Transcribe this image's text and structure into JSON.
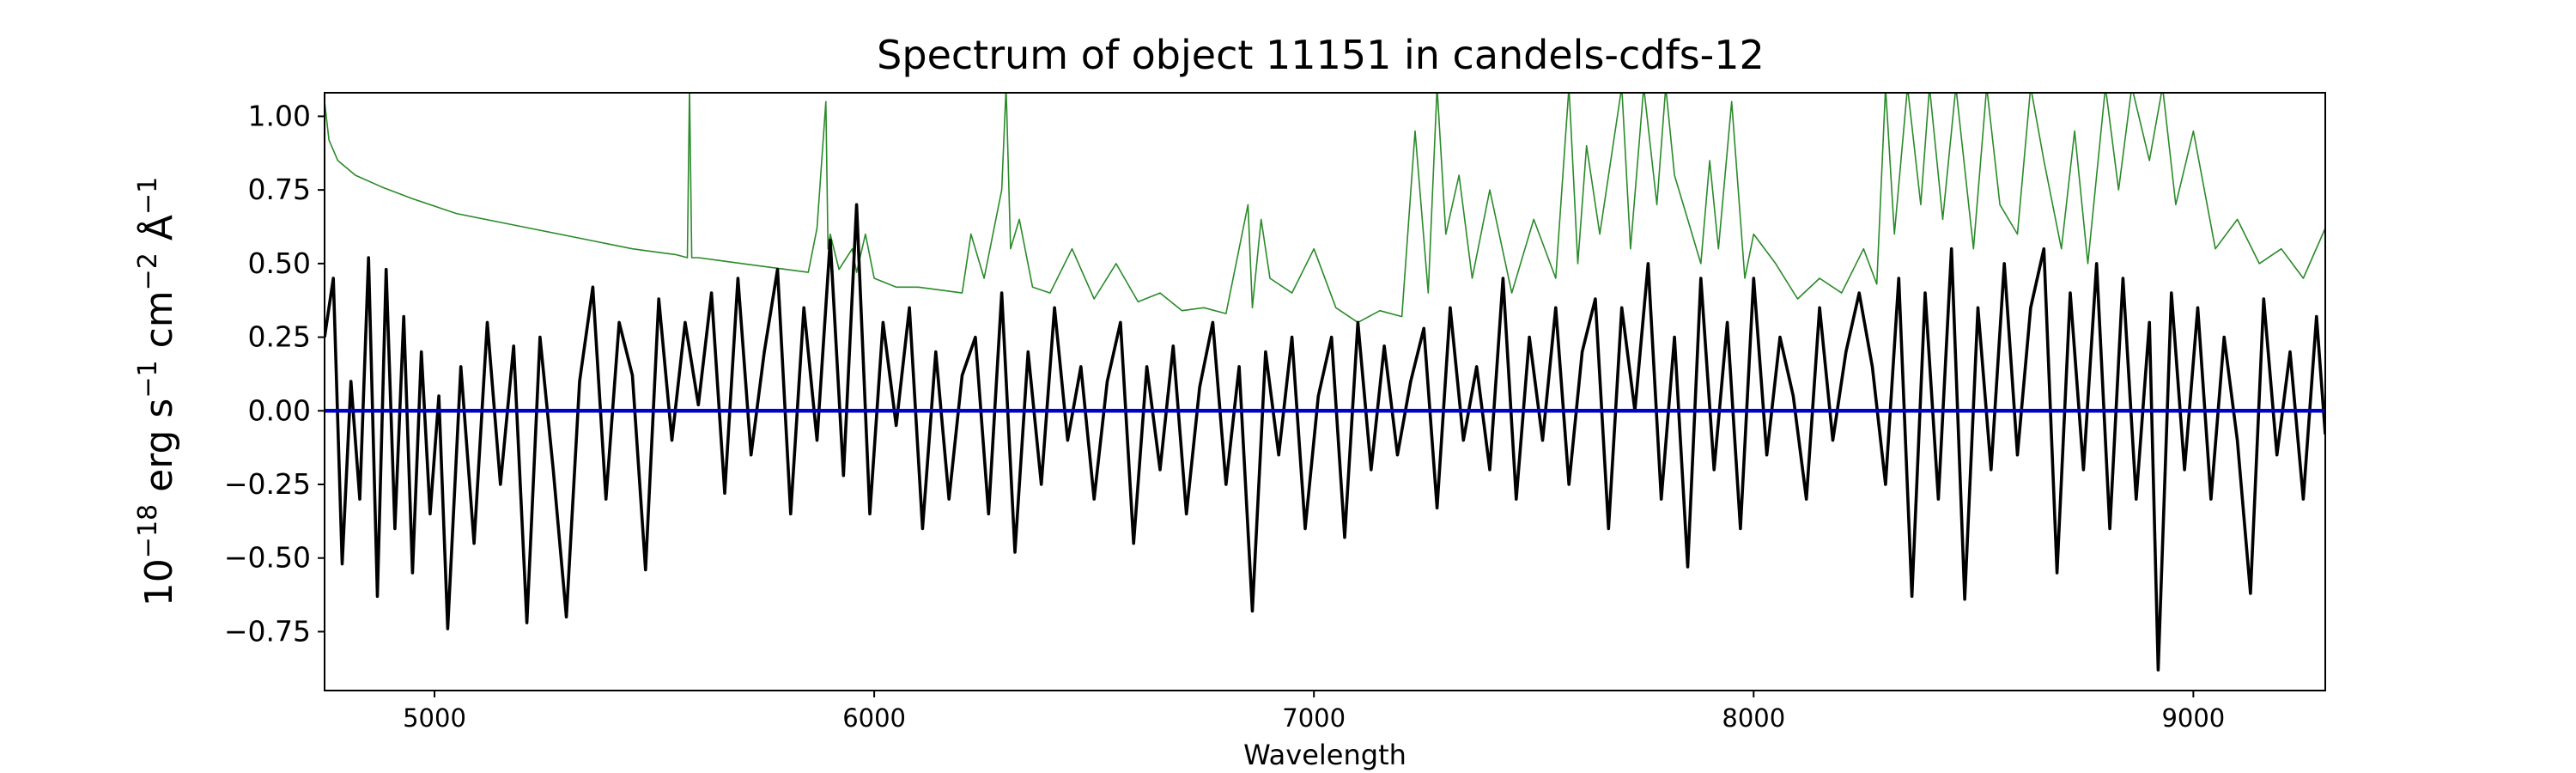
{
  "chart_data": {
    "type": "line",
    "title": "Spectrum of object 11151 in candels-cdfs-12",
    "xlabel": "Wavelength",
    "ylabel": "10^-18 erg s^-1 cm^-2 Å^-1",
    "xlim": [
      4750,
      9300
    ],
    "ylim": [
      -0.95,
      1.08
    ],
    "xticks": [
      5000,
      6000,
      7000,
      8000,
      9000
    ],
    "xtick_labels": [
      "5000",
      "6000",
      "7000",
      "8000",
      "9000"
    ],
    "yticks": [
      -0.75,
      -0.5,
      -0.25,
      0.0,
      0.25,
      0.5,
      0.75,
      1.0
    ],
    "ytick_labels": [
      "−0.75",
      "−0.50",
      "−0.25",
      "0.00",
      "0.25",
      "0.50",
      "0.75",
      "1.00"
    ],
    "grid": false,
    "colors": {
      "flux": "#000000",
      "error": "#2a8a2a",
      "model": "#0000cc"
    },
    "series": [
      {
        "key": "flux",
        "x": [
          4750,
          4770,
          4790,
          4810,
          4830,
          4850,
          4870,
          4890,
          4910,
          4930,
          4950,
          4970,
          4990,
          5010,
          5030,
          5060,
          5090,
          5120,
          5150,
          5180,
          5210,
          5240,
          5270,
          5300,
          5330,
          5360,
          5390,
          5420,
          5450,
          5480,
          5510,
          5540,
          5570,
          5600,
          5630,
          5660,
          5690,
          5720,
          5750,
          5780,
          5810,
          5840,
          5870,
          5900,
          5930,
          5960,
          5990,
          6020,
          6050,
          6080,
          6110,
          6140,
          6170,
          6200,
          6230,
          6260,
          6290,
          6320,
          6350,
          6380,
          6410,
          6440,
          6470,
          6500,
          6530,
          6560,
          6590,
          6620,
          6650,
          6680,
          6710,
          6740,
          6770,
          6800,
          6830,
          6860,
          6890,
          6920,
          6950,
          6980,
          7010,
          7040,
          7070,
          7100,
          7130,
          7160,
          7190,
          7220,
          7250,
          7280,
          7310,
          7340,
          7370,
          7400,
          7430,
          7460,
          7490,
          7520,
          7550,
          7580,
          7610,
          7640,
          7670,
          7700,
          7730,
          7760,
          7790,
          7820,
          7850,
          7880,
          7910,
          7940,
          7970,
          8000,
          8030,
          8060,
          8090,
          8120,
          8150,
          8180,
          8210,
          8240,
          8270,
          8300,
          8330,
          8360,
          8390,
          8420,
          8450,
          8480,
          8510,
          8540,
          8570,
          8600,
          8630,
          8660,
          8690,
          8720,
          8750,
          8780,
          8810,
          8840,
          8870,
          8900,
          8920,
          8950,
          8980,
          9010,
          9040,
          9070,
          9100,
          9130,
          9160,
          9190,
          9220,
          9250,
          9280,
          9300
        ],
        "y": [
          0.25,
          0.45,
          -0.52,
          0.1,
          -0.3,
          0.52,
          -0.63,
          0.48,
          -0.4,
          0.32,
          -0.55,
          0.2,
          -0.35,
          0.05,
          -0.74,
          0.15,
          -0.45,
          0.3,
          -0.25,
          0.22,
          -0.72,
          0.25,
          -0.2,
          -0.7,
          0.1,
          0.42,
          -0.3,
          0.3,
          0.12,
          -0.54,
          0.38,
          -0.1,
          0.3,
          0.02,
          0.4,
          -0.28,
          0.45,
          -0.15,
          0.2,
          0.48,
          -0.35,
          0.35,
          -0.1,
          0.58,
          -0.22,
          0.7,
          -0.35,
          0.3,
          -0.05,
          0.35,
          -0.4,
          0.2,
          -0.3,
          0.12,
          0.25,
          -0.35,
          0.4,
          -0.48,
          0.2,
          -0.25,
          0.35,
          -0.1,
          0.15,
          -0.3,
          0.1,
          0.3,
          -0.45,
          0.15,
          -0.2,
          0.22,
          -0.35,
          0.08,
          0.3,
          -0.25,
          0.15,
          -0.68,
          0.2,
          -0.15,
          0.25,
          -0.4,
          0.05,
          0.25,
          -0.43,
          0.3,
          -0.2,
          0.22,
          -0.15,
          0.1,
          0.28,
          -0.33,
          0.35,
          -0.1,
          0.15,
          -0.2,
          0.45,
          -0.3,
          0.25,
          -0.1,
          0.35,
          -0.25,
          0.2,
          0.38,
          -0.4,
          0.35,
          0.0,
          0.5,
          -0.3,
          0.25,
          -0.53,
          0.45,
          -0.2,
          0.3,
          -0.4,
          0.45,
          -0.15,
          0.25,
          0.05,
          -0.3,
          0.35,
          -0.1,
          0.2,
          0.4,
          0.15,
          -0.25,
          0.45,
          -0.63,
          0.4,
          -0.3,
          0.55,
          -0.64,
          0.35,
          -0.2,
          0.5,
          -0.15,
          0.35,
          0.55,
          -0.55,
          0.4,
          -0.2,
          0.5,
          -0.4,
          0.45,
          -0.3,
          0.3,
          -0.88,
          0.4,
          -0.2,
          0.35,
          -0.3,
          0.25,
          -0.1,
          -0.62,
          0.38,
          -0.15,
          0.2,
          -0.3,
          0.32,
          -0.08
        ]
      },
      {
        "key": "error",
        "x": [
          4750,
          4760,
          4780,
          4820,
          4880,
          4950,
          5050,
          5150,
          5250,
          5350,
          5450,
          5550,
          5575,
          5580,
          5585,
          5600,
          5650,
          5700,
          5750,
          5800,
          5850,
          5870,
          5890,
          5895,
          5900,
          5920,
          5950,
          5960,
          5980,
          6000,
          6050,
          6100,
          6150,
          6200,
          6220,
          6250,
          6290,
          6300,
          6310,
          6330,
          6360,
          6400,
          6450,
          6500,
          6550,
          6600,
          6650,
          6700,
          6750,
          6800,
          6850,
          6860,
          6880,
          6900,
          6950,
          7000,
          7050,
          7100,
          7150,
          7200,
          7230,
          7260,
          7280,
          7300,
          7330,
          7360,
          7400,
          7450,
          7500,
          7550,
          7580,
          7600,
          7620,
          7650,
          7700,
          7720,
          7750,
          7780,
          7800,
          7820,
          7850,
          7880,
          7900,
          7920,
          7950,
          7980,
          8000,
          8050,
          8100,
          8150,
          8200,
          8250,
          8280,
          8300,
          8320,
          8350,
          8380,
          8400,
          8430,
          8460,
          8500,
          8530,
          8560,
          8600,
          8630,
          8660,
          8700,
          8730,
          8760,
          8800,
          8830,
          8860,
          8900,
          8930,
          8960,
          9000,
          9050,
          9100,
          9150,
          9200,
          9250,
          9300
        ],
        "y": [
          1.05,
          0.92,
          0.85,
          0.8,
          0.76,
          0.72,
          0.67,
          0.64,
          0.61,
          0.58,
          0.55,
          0.53,
          0.52,
          1.1,
          0.52,
          0.52,
          0.51,
          0.5,
          0.49,
          0.48,
          0.47,
          0.62,
          1.05,
          0.55,
          0.6,
          0.48,
          0.55,
          0.47,
          0.6,
          0.45,
          0.42,
          0.42,
          0.41,
          0.4,
          0.6,
          0.45,
          0.75,
          1.1,
          0.55,
          0.65,
          0.42,
          0.4,
          0.55,
          0.38,
          0.5,
          0.37,
          0.4,
          0.34,
          0.35,
          0.33,
          0.7,
          0.35,
          0.65,
          0.45,
          0.4,
          0.55,
          0.35,
          0.3,
          0.34,
          0.32,
          0.95,
          0.4,
          1.1,
          0.6,
          0.8,
          0.45,
          0.75,
          0.4,
          0.65,
          0.45,
          1.1,
          0.5,
          0.9,
          0.6,
          1.1,
          0.55,
          1.1,
          0.7,
          1.1,
          0.8,
          0.65,
          0.5,
          0.85,
          0.55,
          1.05,
          0.45,
          0.6,
          0.5,
          0.38,
          0.45,
          0.4,
          0.55,
          0.43,
          1.1,
          0.6,
          1.1,
          0.7,
          1.1,
          0.65,
          1.1,
          0.55,
          1.1,
          0.7,
          0.6,
          1.1,
          0.85,
          0.55,
          0.95,
          0.5,
          1.1,
          0.75,
          1.1,
          0.85,
          1.1,
          0.7,
          0.95,
          0.55,
          0.65,
          0.5,
          0.55,
          0.45,
          0.62
        ]
      },
      {
        "key": "model",
        "x": [
          4750,
          9300
        ],
        "y": [
          0.0,
          0.0
        ]
      }
    ]
  }
}
